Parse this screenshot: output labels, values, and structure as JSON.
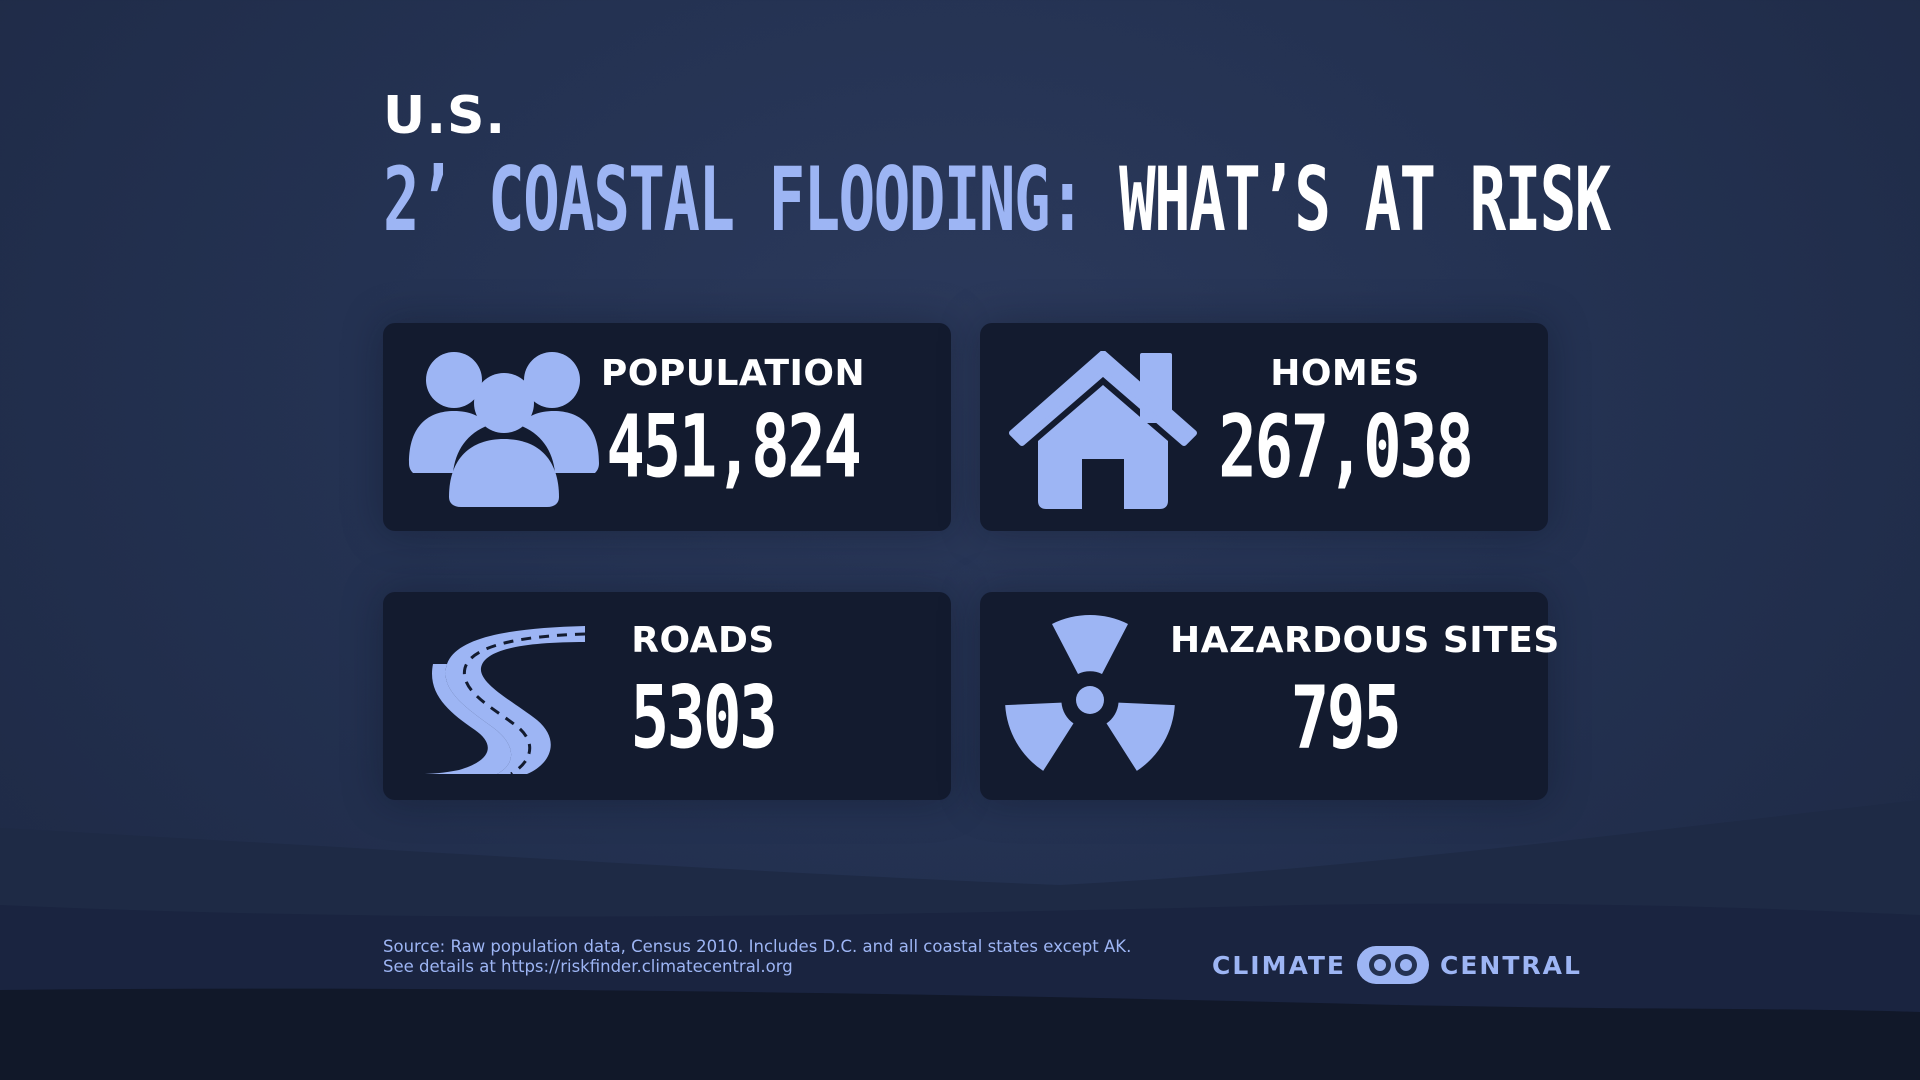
{
  "title": {
    "region": "U.S.",
    "accent": "2’ COASTAL FLOODING:",
    "rest": "WHAT’S AT RISK"
  },
  "stats": [
    {
      "label": "POPULATION",
      "value": "451,824",
      "icon": "people-icon"
    },
    {
      "label": "HOMES",
      "value": "267,038",
      "icon": "house-icon"
    },
    {
      "label": "ROADS",
      "value": "5303",
      "icon": "road-icon"
    },
    {
      "label": "HAZARDOUS SITES",
      "value": "795",
      "icon": "radiation-icon"
    }
  ],
  "source": {
    "line1": "Source: Raw population data, Census 2010. Includes D.C. and all coastal states except AK.",
    "line2": "See details at https://riskfinder.climatecentral.org"
  },
  "logo": {
    "left": "CLIMATE",
    "right": "CENTRAL"
  },
  "colors": {
    "accent": "#9db5f4",
    "card": "#131b2f",
    "background": "#243252"
  }
}
